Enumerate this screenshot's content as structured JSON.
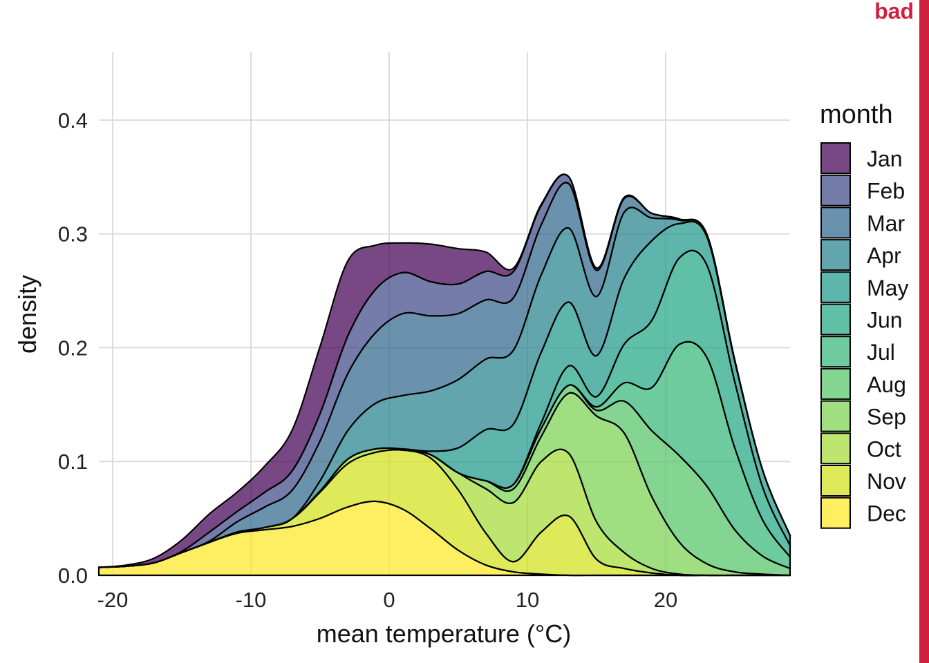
{
  "tag": {
    "text": "bad",
    "color": "#d02040"
  },
  "chart_data": {
    "type": "area",
    "stacked": true,
    "xlabel": "mean temperature (°C)",
    "ylabel": "density",
    "xlim": [
      -21,
      29
    ],
    "ylim": [
      0,
      0.46
    ],
    "x_ticks": [
      -20,
      -10,
      0,
      10,
      20
    ],
    "x_tick_labels": [
      "-20",
      "-10",
      "0",
      "10",
      "20"
    ],
    "y_ticks": [
      0,
      0.1,
      0.2,
      0.3,
      0.4
    ],
    "y_tick_labels": [
      "0.0",
      "0.1",
      "0.2",
      "0.3",
      "0.4"
    ],
    "grid": true,
    "legend": {
      "title": "month",
      "position": "right"
    },
    "x": [
      -21,
      -19,
      -17,
      -15,
      -13,
      -11,
      -9,
      -7,
      -5,
      -3,
      -1,
      1,
      3,
      5,
      7,
      9,
      11,
      13,
      15,
      17,
      19,
      21,
      23,
      25,
      27,
      29
    ],
    "series": [
      {
        "name": "Dec",
        "color": "#fde725",
        "values": [
          0.007,
          0.008,
          0.011,
          0.02,
          0.029,
          0.037,
          0.04,
          0.043,
          0.05,
          0.06,
          0.065,
          0.058,
          0.041,
          0.022,
          0.009,
          0.003,
          0.001,
          0,
          0,
          0,
          0,
          0,
          0,
          0,
          0,
          0
        ]
      },
      {
        "name": "Nov",
        "color": "#d2e21b",
        "values": [
          0,
          0,
          0,
          0,
          0,
          0.001,
          0.002,
          0.007,
          0.023,
          0.038,
          0.043,
          0.052,
          0.062,
          0.053,
          0.028,
          0.009,
          0.037,
          0.052,
          0.014,
          0.006,
          0.002,
          0,
          0,
          0,
          0,
          0
        ]
      },
      {
        "name": "Oct",
        "color": "#a5db36",
        "values": [
          0,
          0,
          0,
          0,
          0,
          0,
          0,
          0,
          0.001,
          0.004,
          0.003,
          0.001,
          0.003,
          0.015,
          0.039,
          0.052,
          0.062,
          0.055,
          0.033,
          0.014,
          0.004,
          0.001,
          0,
          0,
          0,
          0
        ]
      },
      {
        "name": "Sep",
        "color": "#7ad151",
        "values": [
          0,
          0,
          0,
          0,
          0,
          0,
          0,
          0,
          0,
          0,
          0,
          0,
          0,
          0,
          0.007,
          0.012,
          0.022,
          0.053,
          0.093,
          0.105,
          0.063,
          0.028,
          0.01,
          0.003,
          0.001,
          0
        ]
      },
      {
        "name": "Aug",
        "color": "#54c568",
        "values": [
          0,
          0,
          0,
          0,
          0,
          0,
          0,
          0,
          0,
          0,
          0,
          0,
          0,
          0,
          0,
          0.004,
          0.007,
          0.007,
          0.005,
          0.028,
          0.058,
          0.076,
          0.068,
          0.037,
          0.016,
          0.006
        ]
      },
      {
        "name": "Jul",
        "color": "#35b779",
        "values": [
          0,
          0,
          0,
          0,
          0,
          0,
          0,
          0,
          0,
          0,
          0,
          0,
          0,
          0,
          0,
          0,
          0,
          0,
          0.003,
          0.016,
          0.038,
          0.098,
          0.113,
          0.072,
          0.032,
          0.01
        ]
      },
      {
        "name": "Jun",
        "color": "#22a884",
        "values": [
          0,
          0,
          0,
          0,
          0,
          0,
          0,
          0,
          0,
          0,
          0,
          0,
          0,
          0,
          0,
          0,
          0.005,
          0.017,
          0.009,
          0.034,
          0.059,
          0.076,
          0.081,
          0.058,
          0.029,
          0.01
        ]
      },
      {
        "name": "May",
        "color": "#1f988b",
        "values": [
          0,
          0,
          0,
          0,
          0,
          0,
          0,
          0,
          0,
          0,
          0,
          0,
          0.003,
          0.022,
          0.045,
          0.053,
          0.062,
          0.056,
          0.036,
          0.058,
          0.07,
          0.03,
          0.025,
          0.018,
          0.015,
          0.009
        ]
      },
      {
        "name": "Apr",
        "color": "#26828e",
        "values": [
          0,
          0,
          0,
          0,
          0,
          0,
          0,
          0,
          0.009,
          0.025,
          0.04,
          0.047,
          0.053,
          0.06,
          0.062,
          0.065,
          0.068,
          0.065,
          0.052,
          0.058,
          0.02,
          0.003,
          0.002,
          0.001,
          0,
          0
        ]
      },
      {
        "name": "Mar",
        "color": "#31688e",
        "values": [
          0,
          0,
          0,
          0,
          0.001,
          0.009,
          0.018,
          0.025,
          0.035,
          0.05,
          0.062,
          0.072,
          0.066,
          0.058,
          0.052,
          0.046,
          0.044,
          0.039,
          0.023,
          0.012,
          0.004,
          0.001,
          0,
          0,
          0,
          0
        ]
      },
      {
        "name": "Feb",
        "color": "#3e4989",
        "values": [
          0,
          0,
          0,
          0.001,
          0.008,
          0.009,
          0.013,
          0.017,
          0.024,
          0.033,
          0.038,
          0.036,
          0.03,
          0.026,
          0.025,
          0.023,
          0.017,
          0.006,
          0.002,
          0.001,
          0,
          0,
          0,
          0,
          0,
          0
        ]
      },
      {
        "name": "Jan",
        "color": "#440154",
        "values": [
          0,
          0.001,
          0.004,
          0.01,
          0.016,
          0.017,
          0.023,
          0.036,
          0.059,
          0.066,
          0.039,
          0.026,
          0.033,
          0.031,
          0.017,
          0.003,
          0.001,
          0,
          0,
          0,
          0,
          0,
          0,
          0,
          0,
          0
        ]
      }
    ]
  }
}
